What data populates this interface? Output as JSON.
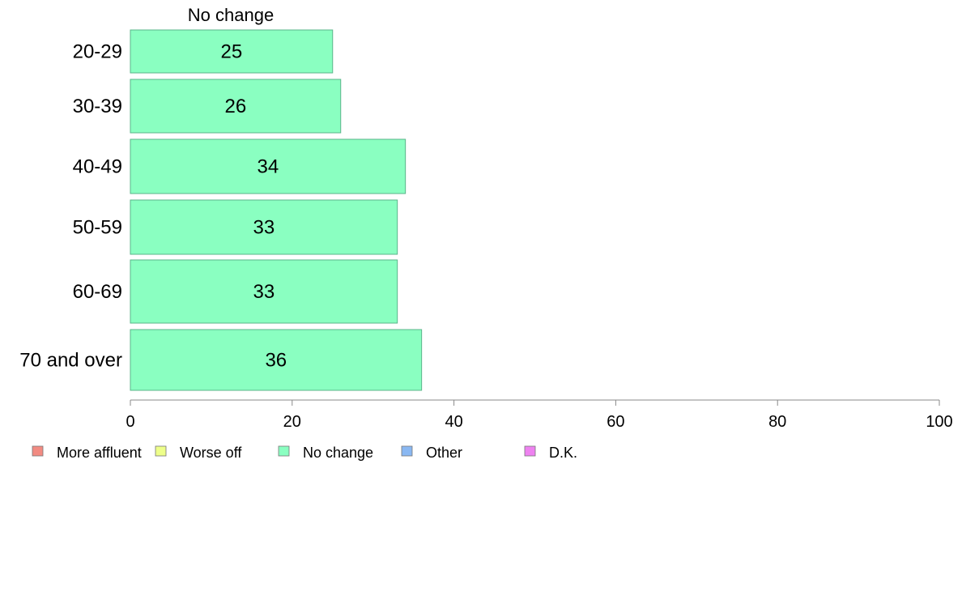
{
  "chart_data": {
    "type": "bar",
    "orientation": "horizontal",
    "panel_title": "No change",
    "categories": [
      "20-29",
      "30-39",
      "40-49",
      "50-59",
      "60-69",
      "70 and over"
    ],
    "series": [
      {
        "name": "No change",
        "values": [
          25,
          26,
          34,
          33,
          33,
          36
        ]
      }
    ],
    "xlim": [
      0,
      100
    ],
    "x_ticks": [
      0,
      20,
      40,
      60,
      80,
      100
    ],
    "grid": false,
    "legend_placement": "bottom",
    "legend": [
      {
        "label": "More affluent",
        "color": "#f28b82"
      },
      {
        "label": "Worse off",
        "color": "#eeff8a"
      },
      {
        "label": "No change",
        "color": "#8affc1"
      },
      {
        "label": "Other",
        "color": "#8ab8f2"
      },
      {
        "label": "D.K.",
        "color": "#ee82f0"
      }
    ],
    "bar_color": "#8affc1",
    "bar_border_color": "#5ab58a",
    "axis_color": "#888888"
  }
}
